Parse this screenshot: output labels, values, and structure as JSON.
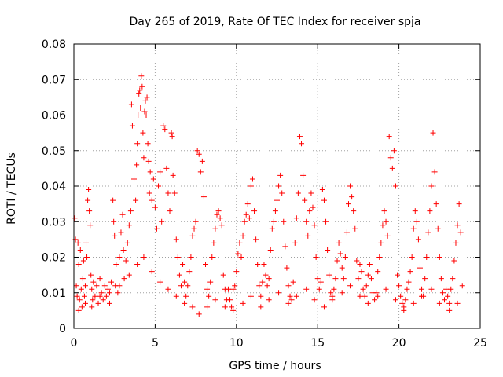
{
  "chart_data": {
    "type": "scatter",
    "title": "Day 265 of 2019, Rate Of TEC Index for receiver spja",
    "xlabel": "GPS time / hours",
    "ylabel": "ROTI / TECUs",
    "xlim": [
      0,
      25
    ],
    "ylim": [
      0,
      0.08
    ],
    "xticks": [
      0,
      5,
      10,
      15,
      20,
      25
    ],
    "yticks": [
      0,
      0.01,
      0.02,
      0.03,
      0.04,
      0.05,
      0.06,
      0.07,
      0.08
    ],
    "xtick_labels": [
      "0",
      "5",
      "10",
      "15",
      "20",
      "25"
    ],
    "ytick_labels": [
      "0",
      "0.01",
      "0.02",
      "0.03",
      "0.04",
      "0.05",
      "0.06",
      "0.07",
      "0.08"
    ],
    "grid": true,
    "marker": "+",
    "color": "#ff0000",
    "series": [
      {
        "name": "ROTI",
        "points": [
          [
            0.05,
            0.031
          ],
          [
            0.1,
            0.025
          ],
          [
            0.15,
            0.012
          ],
          [
            0.2,
            0.009
          ],
          [
            0.25,
            0.024
          ],
          [
            0.3,
            0.018
          ],
          [
            0.35,
            0.008
          ],
          [
            0.4,
            0.022
          ],
          [
            0.45,
            0.011
          ],
          [
            0.5,
            0.006
          ],
          [
            0.55,
            0.014
          ],
          [
            0.6,
            0.019
          ],
          [
            0.65,
            0.009
          ],
          [
            0.7,
            0.012
          ],
          [
            0.75,
            0.024
          ],
          [
            0.8,
            0.02
          ],
          [
            0.85,
            0.036
          ],
          [
            0.9,
            0.039
          ],
          [
            0.95,
            0.033
          ],
          [
            1.0,
            0.029
          ],
          [
            1.05,
            0.015
          ],
          [
            1.1,
            0.011
          ],
          [
            1.15,
            0.008
          ],
          [
            1.2,
            0.013
          ],
          [
            1.3,
            0.009
          ],
          [
            1.4,
            0.012
          ],
          [
            1.5,
            0.007
          ],
          [
            1.6,
            0.014
          ],
          [
            1.7,
            0.01
          ],
          [
            1.8,
            0.008
          ],
          [
            1.9,
            0.012
          ],
          [
            2.0,
            0.009
          ],
          [
            2.1,
            0.011
          ],
          [
            2.2,
            0.007
          ],
          [
            2.3,
            0.013
          ],
          [
            2.4,
            0.036
          ],
          [
            2.45,
            0.03
          ],
          [
            2.5,
            0.026
          ],
          [
            2.55,
            0.012
          ],
          [
            2.6,
            0.018
          ],
          [
            2.7,
            0.01
          ],
          [
            2.8,
            0.02
          ],
          [
            2.9,
            0.027
          ],
          [
            3.0,
            0.032
          ],
          [
            3.05,
            0.022
          ],
          [
            3.1,
            0.014
          ],
          [
            3.2,
            0.019
          ],
          [
            3.3,
            0.024
          ],
          [
            3.4,
            0.029
          ],
          [
            3.5,
            0.033
          ],
          [
            3.55,
            0.063
          ],
          [
            3.6,
            0.057
          ],
          [
            3.7,
            0.042
          ],
          [
            3.8,
            0.036
          ],
          [
            3.85,
            0.046
          ],
          [
            3.9,
            0.052
          ],
          [
            3.95,
            0.06
          ],
          [
            4.0,
            0.066
          ],
          [
            4.05,
            0.067
          ],
          [
            4.1,
            0.062
          ],
          [
            4.15,
            0.071
          ],
          [
            4.2,
            0.068
          ],
          [
            4.25,
            0.055
          ],
          [
            4.3,
            0.048
          ],
          [
            4.35,
            0.061
          ],
          [
            4.4,
            0.064
          ],
          [
            4.45,
            0.06
          ],
          [
            4.5,
            0.065
          ],
          [
            4.55,
            0.052
          ],
          [
            4.6,
            0.047
          ],
          [
            4.65,
            0.038
          ],
          [
            4.7,
            0.044
          ],
          [
            4.8,
            0.036
          ],
          [
            4.9,
            0.042
          ],
          [
            5.0,
            0.034
          ],
          [
            5.1,
            0.028
          ],
          [
            5.2,
            0.04
          ],
          [
            5.3,
            0.044
          ],
          [
            5.4,
            0.03
          ],
          [
            5.5,
            0.057
          ],
          [
            5.6,
            0.056
          ],
          [
            5.7,
            0.045
          ],
          [
            5.8,
            0.038
          ],
          [
            5.9,
            0.033
          ],
          [
            6.0,
            0.055
          ],
          [
            6.05,
            0.054
          ],
          [
            6.1,
            0.043
          ],
          [
            6.2,
            0.038
          ],
          [
            6.3,
            0.025
          ],
          [
            6.4,
            0.02
          ],
          [
            6.5,
            0.015
          ],
          [
            6.6,
            0.012
          ],
          [
            6.7,
            0.018
          ],
          [
            6.8,
            0.013
          ],
          [
            6.9,
            0.009
          ],
          [
            7.0,
            0.012
          ],
          [
            7.1,
            0.016
          ],
          [
            7.2,
            0.02
          ],
          [
            7.3,
            0.026
          ],
          [
            7.4,
            0.028
          ],
          [
            7.5,
            0.03
          ],
          [
            7.6,
            0.05
          ],
          [
            7.7,
            0.049
          ],
          [
            7.8,
            0.044
          ],
          [
            7.9,
            0.047
          ],
          [
            8.0,
            0.037
          ],
          [
            8.1,
            0.018
          ],
          [
            8.2,
            0.011
          ],
          [
            8.3,
            0.009
          ],
          [
            8.4,
            0.013
          ],
          [
            8.5,
            0.02
          ],
          [
            8.6,
            0.024
          ],
          [
            8.7,
            0.028
          ],
          [
            8.8,
            0.032
          ],
          [
            8.9,
            0.033
          ],
          [
            9.0,
            0.031
          ],
          [
            9.1,
            0.029
          ],
          [
            9.2,
            0.015
          ],
          [
            9.3,
            0.011
          ],
          [
            9.4,
            0.008
          ],
          [
            9.5,
            0.011
          ],
          [
            9.6,
            0.008
          ],
          [
            9.7,
            0.006
          ],
          [
            9.8,
            0.011
          ],
          [
            9.9,
            0.012
          ],
          [
            10.0,
            0.016
          ],
          [
            10.1,
            0.021
          ],
          [
            10.2,
            0.024
          ],
          [
            10.3,
            0.02
          ],
          [
            10.4,
            0.026
          ],
          [
            10.5,
            0.03
          ],
          [
            10.6,
            0.032
          ],
          [
            10.7,
            0.035
          ],
          [
            10.8,
            0.031
          ],
          [
            10.9,
            0.04
          ],
          [
            11.0,
            0.042
          ],
          [
            11.1,
            0.033
          ],
          [
            11.2,
            0.025
          ],
          [
            11.3,
            0.018
          ],
          [
            11.4,
            0.012
          ],
          [
            11.5,
            0.009
          ],
          [
            11.6,
            0.013
          ],
          [
            11.7,
            0.018
          ],
          [
            11.8,
            0.015
          ],
          [
            11.9,
            0.012
          ],
          [
            12.0,
            0.014
          ],
          [
            12.1,
            0.022
          ],
          [
            12.2,
            0.028
          ],
          [
            12.3,
            0.03
          ],
          [
            12.4,
            0.033
          ],
          [
            12.5,
            0.036
          ],
          [
            12.6,
            0.04
          ],
          [
            12.7,
            0.043
          ],
          [
            12.8,
            0.038
          ],
          [
            12.9,
            0.03
          ],
          [
            13.0,
            0.023
          ],
          [
            13.1,
            0.017
          ],
          [
            13.2,
            0.012
          ],
          [
            13.3,
            0.009
          ],
          [
            13.4,
            0.008
          ],
          [
            13.5,
            0.013
          ],
          [
            13.6,
            0.024
          ],
          [
            13.7,
            0.031
          ],
          [
            13.8,
            0.038
          ],
          [
            13.9,
            0.054
          ],
          [
            14.0,
            0.052
          ],
          [
            14.1,
            0.043
          ],
          [
            14.2,
            0.036
          ],
          [
            14.3,
            0.03
          ],
          [
            14.4,
            0.026
          ],
          [
            14.5,
            0.033
          ],
          [
            14.6,
            0.038
          ],
          [
            14.7,
            0.034
          ],
          [
            14.8,
            0.029
          ],
          [
            14.9,
            0.02
          ],
          [
            15.0,
            0.014
          ],
          [
            15.1,
            0.011
          ],
          [
            15.2,
            0.013
          ],
          [
            15.3,
            0.039
          ],
          [
            15.4,
            0.036
          ],
          [
            15.5,
            0.03
          ],
          [
            15.6,
            0.022
          ],
          [
            15.7,
            0.015
          ],
          [
            15.8,
            0.01
          ],
          [
            15.9,
            0.008
          ],
          [
            16.0,
            0.011
          ],
          [
            16.1,
            0.014
          ],
          [
            16.2,
            0.019
          ],
          [
            16.3,
            0.024
          ],
          [
            16.4,
            0.021
          ],
          [
            16.5,
            0.017
          ],
          [
            16.6,
            0.014
          ],
          [
            16.7,
            0.02
          ],
          [
            16.8,
            0.027
          ],
          [
            16.9,
            0.035
          ],
          [
            17.0,
            0.04
          ],
          [
            17.1,
            0.037
          ],
          [
            17.2,
            0.033
          ],
          [
            17.3,
            0.028
          ],
          [
            17.4,
            0.019
          ],
          [
            17.5,
            0.014
          ],
          [
            17.6,
            0.018
          ],
          [
            17.7,
            0.016
          ],
          [
            17.8,
            0.011
          ],
          [
            17.9,
            0.009
          ],
          [
            18.0,
            0.012
          ],
          [
            18.1,
            0.015
          ],
          [
            18.2,
            0.018
          ],
          [
            18.3,
            0.014
          ],
          [
            18.4,
            0.01
          ],
          [
            18.5,
            0.008
          ],
          [
            18.6,
            0.01
          ],
          [
            18.7,
            0.016
          ],
          [
            18.8,
            0.02
          ],
          [
            18.9,
            0.024
          ],
          [
            19.0,
            0.029
          ],
          [
            19.1,
            0.033
          ],
          [
            19.2,
            0.03
          ],
          [
            19.3,
            0.026
          ],
          [
            19.4,
            0.054
          ],
          [
            19.5,
            0.048
          ],
          [
            19.6,
            0.045
          ],
          [
            19.7,
            0.05
          ],
          [
            19.8,
            0.04
          ],
          [
            19.9,
            0.015
          ],
          [
            20.0,
            0.012
          ],
          [
            20.1,
            0.009
          ],
          [
            20.2,
            0.007
          ],
          [
            20.3,
            0.005
          ],
          [
            20.4,
            0.008
          ],
          [
            20.5,
            0.011
          ],
          [
            20.6,
            0.013
          ],
          [
            20.7,
            0.016
          ],
          [
            20.8,
            0.02
          ],
          [
            20.9,
            0.028
          ],
          [
            21.0,
            0.033
          ],
          [
            21.1,
            0.03
          ],
          [
            21.2,
            0.025
          ],
          [
            21.3,
            0.017
          ],
          [
            21.4,
            0.011
          ],
          [
            21.5,
            0.009
          ],
          [
            21.6,
            0.014
          ],
          [
            21.7,
            0.02
          ],
          [
            21.8,
            0.027
          ],
          [
            21.9,
            0.033
          ],
          [
            22.0,
            0.04
          ],
          [
            22.1,
            0.055
          ],
          [
            22.2,
            0.044
          ],
          [
            22.3,
            0.035
          ],
          [
            22.4,
            0.028
          ],
          [
            22.5,
            0.02
          ],
          [
            22.6,
            0.014
          ],
          [
            22.7,
            0.01
          ],
          [
            22.8,
            0.008
          ],
          [
            22.9,
            0.011
          ],
          [
            23.0,
            0.009
          ],
          [
            23.1,
            0.007
          ],
          [
            23.2,
            0.011
          ],
          [
            23.3,
            0.014
          ],
          [
            23.4,
            0.019
          ],
          [
            23.5,
            0.024
          ],
          [
            23.6,
            0.029
          ],
          [
            23.7,
            0.035
          ],
          [
            23.8,
            0.027
          ],
          [
            23.9,
            0.012
          ],
          [
            0.3,
            0.005
          ],
          [
            0.7,
            0.007
          ],
          [
            1.1,
            0.006
          ],
          [
            1.6,
            0.009
          ],
          [
            2.2,
            0.01
          ],
          [
            2.8,
            0.012
          ],
          [
            3.4,
            0.015
          ],
          [
            3.9,
            0.018
          ],
          [
            4.3,
            0.02
          ],
          [
            4.8,
            0.016
          ],
          [
            5.3,
            0.013
          ],
          [
            5.8,
            0.011
          ],
          [
            6.3,
            0.009
          ],
          [
            6.8,
            0.007
          ],
          [
            7.3,
            0.006
          ],
          [
            7.7,
            0.004
          ],
          [
            8.2,
            0.006
          ],
          [
            8.7,
            0.008
          ],
          [
            9.3,
            0.006
          ],
          [
            9.8,
            0.005
          ],
          [
            10.4,
            0.007
          ],
          [
            10.9,
            0.009
          ],
          [
            11.5,
            0.006
          ],
          [
            12.0,
            0.008
          ],
          [
            12.6,
            0.01
          ],
          [
            13.2,
            0.007
          ],
          [
            13.7,
            0.009
          ],
          [
            14.3,
            0.011
          ],
          [
            14.8,
            0.008
          ],
          [
            15.4,
            0.006
          ],
          [
            15.9,
            0.009
          ],
          [
            16.5,
            0.01
          ],
          [
            17.0,
            0.012
          ],
          [
            17.6,
            0.009
          ],
          [
            18.1,
            0.007
          ],
          [
            18.7,
            0.009
          ],
          [
            19.2,
            0.011
          ],
          [
            19.8,
            0.008
          ],
          [
            20.3,
            0.006
          ],
          [
            20.9,
            0.007
          ],
          [
            21.4,
            0.009
          ],
          [
            22.0,
            0.011
          ],
          [
            22.5,
            0.007
          ],
          [
            23.1,
            0.005
          ],
          [
            23.6,
            0.007
          ]
        ]
      }
    ]
  }
}
